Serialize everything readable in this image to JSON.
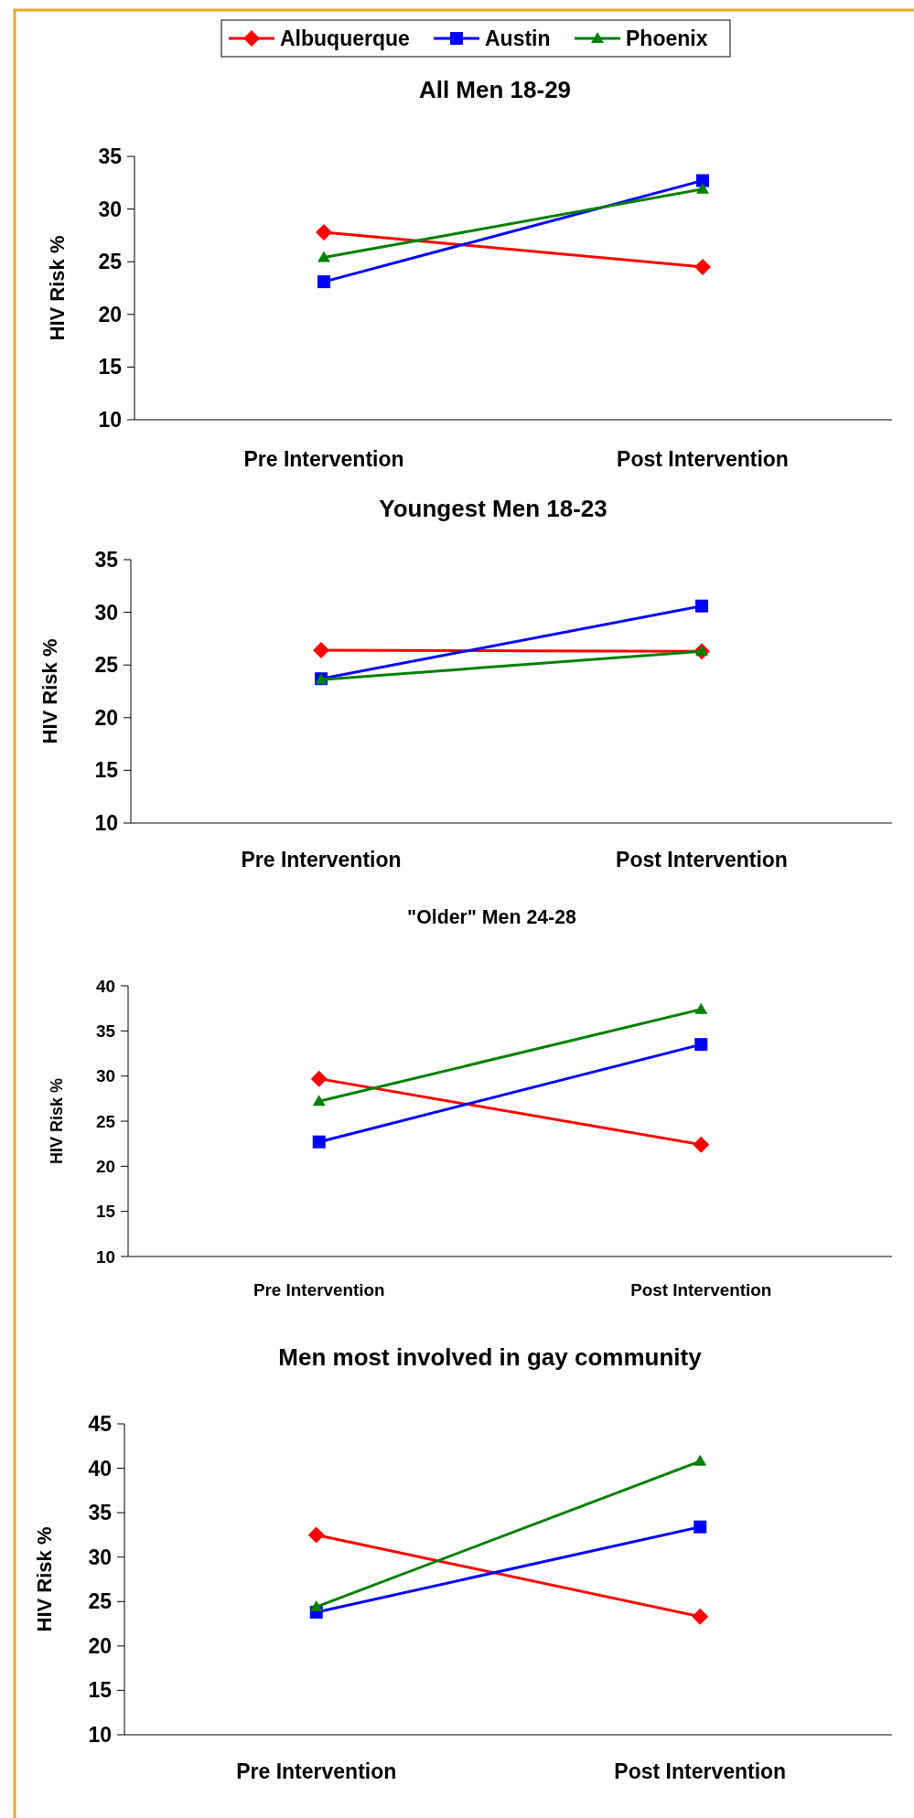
{
  "chart_data": [
    {
      "type": "line",
      "title": "All Men 18-29",
      "ylabel": "HIV Risk %",
      "categories": [
        "Pre Intervention",
        "Post Intervention"
      ],
      "ylim": [
        10,
        35
      ],
      "yticks": [
        10,
        15,
        20,
        25,
        30,
        35
      ],
      "grid": false,
      "legend": "top",
      "line_style": "solid",
      "series": [
        {
          "name": "Albuquerque",
          "color": "#ff0000",
          "marker": "diamond",
          "values": [
            27.8,
            24.5
          ]
        },
        {
          "name": "Austin",
          "color": "#0000ff",
          "marker": "square",
          "values": [
            23.1,
            32.7
          ]
        },
        {
          "name": "Phoenix",
          "color": "#008000",
          "marker": "triangle",
          "values": [
            25.4,
            31.9
          ]
        }
      ]
    },
    {
      "type": "line",
      "title": "Youngest Men 18-23",
      "ylabel": "HIV Risk %",
      "categories": [
        "Pre Intervention",
        "Post Intervention"
      ],
      "ylim": [
        10,
        35
      ],
      "yticks": [
        10,
        15,
        20,
        25,
        30,
        35
      ],
      "grid": false,
      "legend": false,
      "line_style": "solid",
      "series": [
        {
          "color": "#ff0000",
          "marker": "diamond",
          "values": [
            26.4,
            26.3
          ]
        },
        {
          "color": "#0000ff",
          "marker": "square",
          "values": [
            23.7,
            30.6
          ]
        },
        {
          "color": "#008000",
          "marker": "triangle",
          "values": [
            23.6,
            26.3
          ]
        }
      ]
    },
    {
      "type": "line",
      "title": "\"Older\" Men 24-28",
      "ylabel": "HIV Risk %",
      "categories": [
        "Pre Intervention",
        "Post Intervention"
      ],
      "ylim": [
        10,
        40
      ],
      "yticks": [
        10,
        15,
        20,
        25,
        30,
        35,
        40
      ],
      "grid": false,
      "legend": false,
      "line_style": "solid",
      "series": [
        {
          "color": "#ff0000",
          "marker": "diamond",
          "values": [
            29.7,
            22.4
          ]
        },
        {
          "color": "#0000ff",
          "marker": "square",
          "values": [
            22.7,
            33.5
          ]
        },
        {
          "color": "#008000",
          "marker": "triangle",
          "values": [
            27.2,
            37.4
          ]
        }
      ]
    },
    {
      "type": "line",
      "title": "Men most involved in gay community",
      "ylabel": "HIV Risk %",
      "categories": [
        "Pre Intervention",
        "Post Intervention"
      ],
      "ylim": [
        10,
        45
      ],
      "yticks": [
        10,
        15,
        20,
        25,
        30,
        35,
        40,
        45
      ],
      "grid": false,
      "legend": false,
      "line_style": "solid",
      "series": [
        {
          "color": "#ff0000",
          "marker": "diamond",
          "values": [
            32.5,
            23.3
          ]
        },
        {
          "color": "#0000ff",
          "marker": "square",
          "values": [
            23.8,
            33.4
          ]
        },
        {
          "color": "#008000",
          "marker": "triangle",
          "values": [
            24.4,
            40.8
          ]
        }
      ]
    }
  ]
}
